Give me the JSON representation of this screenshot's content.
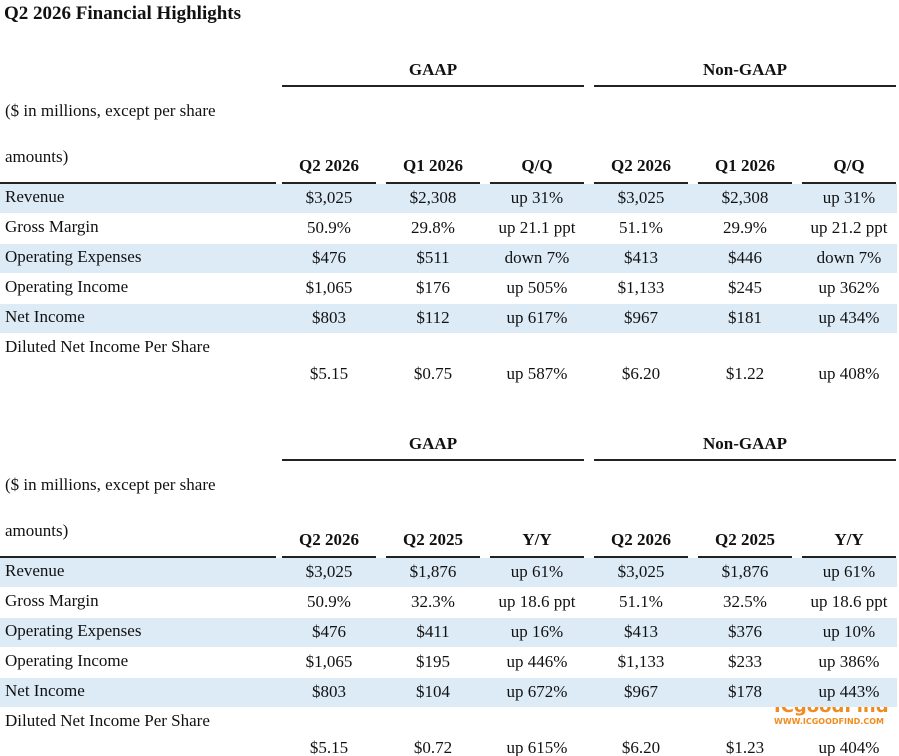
{
  "title": "Q2 2026 Financial Highlights",
  "watermark": {
    "brand": "ICgoodFind",
    "url": "WWW.ICGOODFIND.COM"
  },
  "tables": [
    {
      "group_headers": [
        "GAAP",
        "Non-GAAP"
      ],
      "note": [
        "($ in millions, except per share",
        "amounts)"
      ],
      "columns": [
        "Q2 2026",
        "Q1 2026",
        "Q/Q",
        "Q2 2026",
        "Q1 2026",
        "Q/Q"
      ],
      "rows": [
        {
          "label": "Revenue",
          "values": [
            "$3,025",
            "$2,308",
            "up 31%",
            "$3,025",
            "$2,308",
            "up 31%"
          ]
        },
        {
          "label": "Gross Margin",
          "values": [
            "50.9%",
            "29.8%",
            "up 21.1 ppt",
            "51.1%",
            "29.9%",
            "up 21.2 ppt"
          ]
        },
        {
          "label": "Operating Expenses",
          "values": [
            "$476",
            "$511",
            "down 7%",
            "$413",
            "$446",
            "down 7%"
          ]
        },
        {
          "label": "Operating Income",
          "values": [
            "$1,065",
            "$176",
            "up 505%",
            "$1,133",
            "$245",
            "up 362%"
          ]
        },
        {
          "label": "Net Income",
          "values": [
            "$803",
            "$112",
            "up 617%",
            "$967",
            "$181",
            "up 434%"
          ]
        },
        {
          "label": "Diluted Net Income Per Share",
          "values": [
            "$5.15",
            "$0.75",
            "up 587%",
            "$6.20",
            "$1.22",
            "up 408%"
          ]
        }
      ]
    },
    {
      "group_headers": [
        "GAAP",
        "Non-GAAP"
      ],
      "note": [
        "($ in millions, except per share",
        "amounts)"
      ],
      "columns": [
        "Q2 2026",
        "Q2 2025",
        "Y/Y",
        "Q2 2026",
        "Q2 2025",
        "Y/Y"
      ],
      "rows": [
        {
          "label": "Revenue",
          "values": [
            "$3,025",
            "$1,876",
            "up 61%",
            "$3,025",
            "$1,876",
            "up 61%"
          ]
        },
        {
          "label": "Gross Margin",
          "values": [
            "50.9%",
            "32.3%",
            "up 18.6 ppt",
            "51.1%",
            "32.5%",
            "up 18.6 ppt"
          ]
        },
        {
          "label": "Operating Expenses",
          "values": [
            "$476",
            "$411",
            "up 16%",
            "$413",
            "$376",
            "up 10%"
          ]
        },
        {
          "label": "Operating Income",
          "values": [
            "$1,065",
            "$195",
            "up 446%",
            "$1,133",
            "$233",
            "up 386%"
          ]
        },
        {
          "label": "Net Income",
          "values": [
            "$803",
            "$104",
            "up 672%",
            "$967",
            "$178",
            "up 443%"
          ]
        },
        {
          "label": "Diluted Net Income Per Share",
          "values": [
            "$5.15",
            "$0.72",
            "up 615%",
            "$6.20",
            "$1.23",
            "up 404%"
          ]
        }
      ]
    }
  ]
}
